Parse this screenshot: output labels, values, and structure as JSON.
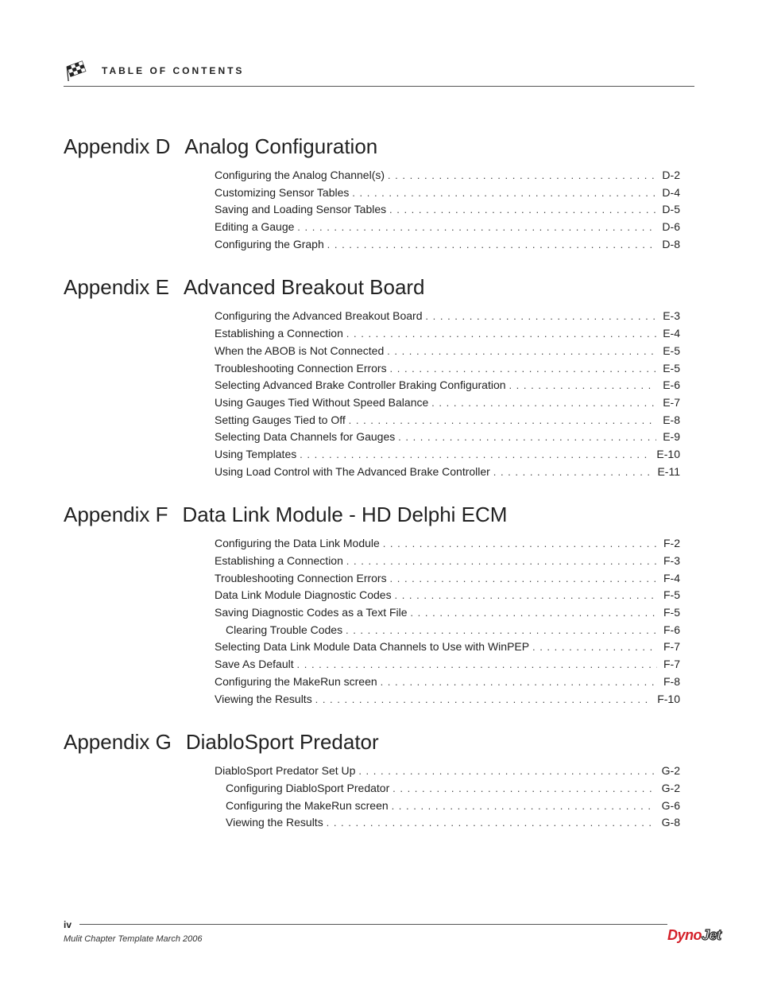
{
  "header": {
    "title": "TABLE OF CONTENTS"
  },
  "sections": [
    {
      "prefix": "Appendix D",
      "title": "Analog Configuration",
      "items": [
        {
          "label": "Configuring the Analog Channel(s)",
          "page": "D-2",
          "indent": 0
        },
        {
          "label": "Customizing Sensor Tables",
          "page": "D-4",
          "indent": 0
        },
        {
          "label": "Saving and Loading Sensor Tables",
          "page": "D-5",
          "indent": 0
        },
        {
          "label": "Editing a Gauge",
          "page": "D-6",
          "indent": 0
        },
        {
          "label": "Configuring the Graph",
          "page": "D-8",
          "indent": 0
        }
      ]
    },
    {
      "prefix": "Appendix E",
      "title": "Advanced Breakout Board",
      "items": [
        {
          "label": "Configuring the Advanced Breakout Board",
          "page": "E-3",
          "indent": 0
        },
        {
          "label": "Establishing a Connection",
          "page": "E-4",
          "indent": 0
        },
        {
          "label": "When the ABOB is Not Connected",
          "page": "E-5",
          "indent": 0
        },
        {
          "label": "Troubleshooting Connection Errors",
          "page": "E-5",
          "indent": 0
        },
        {
          "label": "Selecting Advanced Brake Controller Braking Configuration",
          "page": "E-6",
          "indent": 0
        },
        {
          "label": "Using Gauges Tied Without Speed Balance",
          "page": "E-7",
          "indent": 0
        },
        {
          "label": "Setting Gauges Tied to Off",
          "page": "E-8",
          "indent": 0
        },
        {
          "label": "Selecting Data Channels for Gauges",
          "page": "E-9",
          "indent": 0
        },
        {
          "label": "Using Templates",
          "page": "E-10",
          "indent": 0
        },
        {
          "label": "Using Load Control with The Advanced Brake Controller",
          "page": "E-11",
          "indent": 0
        }
      ]
    },
    {
      "prefix": "Appendix F",
      "title": "Data Link Module - HD Delphi ECM",
      "items": [
        {
          "label": "Configuring the Data Link Module",
          "page": "F-2",
          "indent": 0
        },
        {
          "label": "Establishing a Connection",
          "page": "F-3",
          "indent": 0
        },
        {
          "label": "Troubleshooting Connection Errors",
          "page": "F-4",
          "indent": 0
        },
        {
          "label": "Data Link Module Diagnostic Codes",
          "page": "F-5",
          "indent": 0
        },
        {
          "label": "Saving Diagnostic Codes as a Text File",
          "page": "F-5",
          "indent": 0
        },
        {
          "label": "Clearing Trouble Codes",
          "page": "F-6",
          "indent": 1
        },
        {
          "label": "Selecting Data Link Module Data Channels to Use with WinPEP",
          "page": "F-7",
          "indent": 0
        },
        {
          "label": "Save As Default",
          "page": "F-7",
          "indent": 0
        },
        {
          "label": "Configuring the MakeRun screen",
          "page": "F-8",
          "indent": 0
        },
        {
          "label": "Viewing the Results",
          "page": "F-10",
          "indent": 0
        }
      ]
    },
    {
      "prefix": "Appendix G",
      "title": "DiabloSport Predator",
      "items": [
        {
          "label": "DiabloSport Predator Set Up",
          "page": "G-2",
          "indent": 0
        },
        {
          "label": "Configuring DiabloSport Predator",
          "page": "G-2",
          "indent": 1
        },
        {
          "label": "Configuring the MakeRun screen",
          "page": "G-6",
          "indent": 1
        },
        {
          "label": "Viewing the Results",
          "page": "G-8",
          "indent": 1
        }
      ]
    }
  ],
  "footer": {
    "page_number": "iv",
    "note": "Mulit Chapter Template March 2006",
    "brand_red": "Dyno",
    "brand_outline": "Jet"
  }
}
